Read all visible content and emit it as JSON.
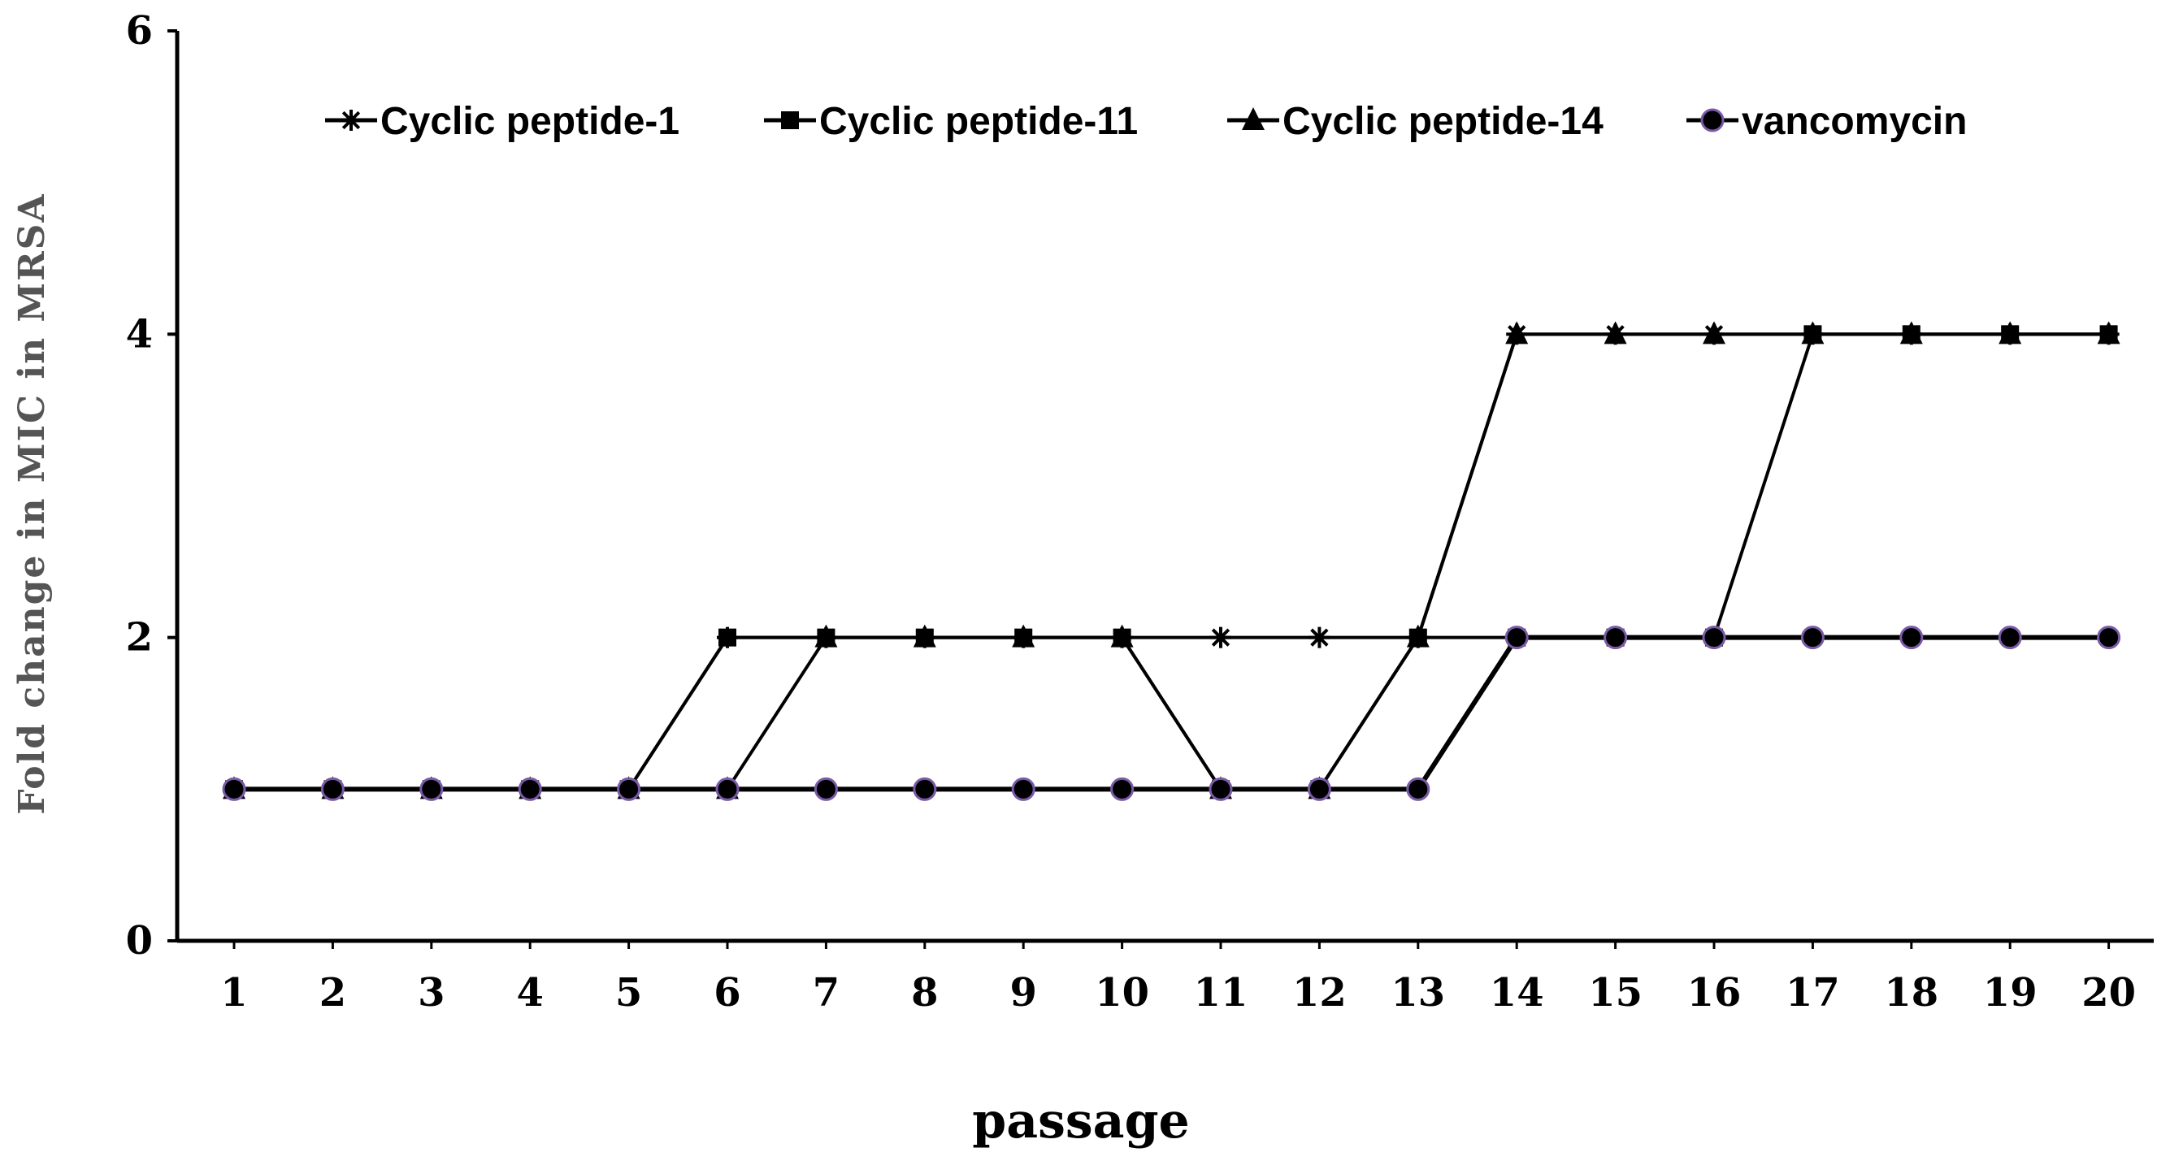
{
  "chart_data": {
    "type": "line",
    "title": "",
    "xlabel": "passage",
    "ylabel": "Fold  change  in  MIC  in  MRSA",
    "ylim": [
      0,
      6
    ],
    "yticks": [
      "0",
      "2",
      "4",
      "6"
    ],
    "categories": [
      "1",
      "2",
      "3",
      "4",
      "5",
      "6",
      "7",
      "8",
      "9",
      "10",
      "11",
      "12",
      "13",
      "14",
      "15",
      "16",
      "17",
      "18",
      "19",
      "20"
    ],
    "legend_position": "top",
    "series": [
      {
        "name": "Cyclic peptide-1",
        "marker": "star",
        "values": [
          1,
          1,
          1,
          1,
          1,
          2,
          2,
          2,
          2,
          2,
          2,
          2,
          2,
          4,
          4,
          4,
          4,
          4,
          4,
          4
        ]
      },
      {
        "name": "Cyclic peptide-11",
        "marker": "square",
        "values": [
          1,
          1,
          1,
          1,
          1,
          2,
          2,
          2,
          2,
          2,
          1,
          1,
          2,
          2,
          2,
          2,
          4,
          4,
          4,
          4
        ]
      },
      {
        "name": "Cyclic peptide-14",
        "marker": "triangle",
        "values": [
          1,
          1,
          1,
          1,
          1,
          1,
          2,
          2,
          2,
          2,
          1,
          1,
          2,
          4,
          4,
          4,
          4,
          4,
          4,
          4
        ]
      },
      {
        "name": "vancomycin",
        "marker": "circle",
        "values": [
          1,
          1,
          1,
          1,
          1,
          1,
          1,
          1,
          1,
          1,
          1,
          1,
          1,
          2,
          2,
          2,
          2,
          2,
          2,
          2
        ]
      }
    ],
    "colors": {
      "line": "#000000",
      "circle_stroke": "#7a5aa8"
    }
  }
}
